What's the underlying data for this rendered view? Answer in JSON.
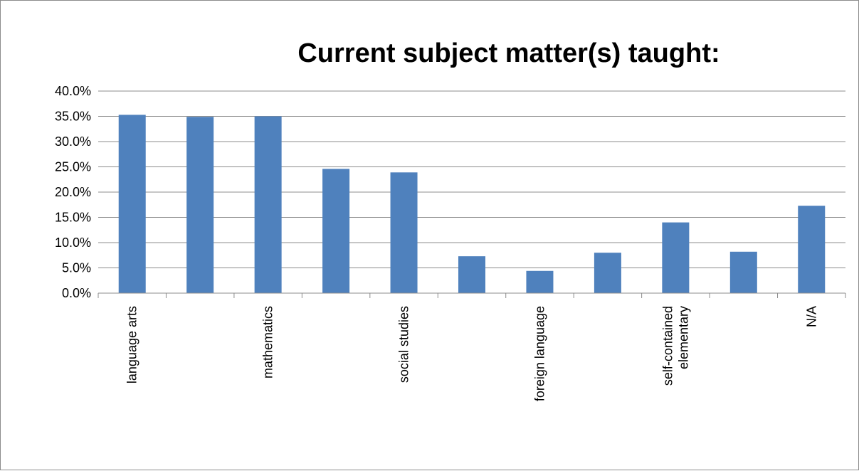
{
  "chart_data": {
    "type": "bar",
    "title": "Current subject matter(s) taught:",
    "xlabel": "",
    "ylabel": "",
    "ylim": [
      0,
      0.4
    ],
    "yticks": [
      "0.0%",
      "5.0%",
      "10.0%",
      "15.0%",
      "20.0%",
      "25.0%",
      "30.0%",
      "35.0%",
      "40.0%"
    ],
    "grid": true,
    "legend": "none",
    "bar_color": "#4f81bd",
    "categories": [
      [
        "language arts"
      ],
      [],
      [
        "mathematics"
      ],
      [],
      [
        "social studies"
      ],
      [],
      [
        "foreign language"
      ],
      [],
      [
        "self-contained",
        "elementary"
      ],
      [],
      [
        "N/A"
      ]
    ],
    "values": [
      0.353,
      0.349,
      0.35,
      0.246,
      0.239,
      0.073,
      0.044,
      0.08,
      0.14,
      0.082,
      0.173
    ]
  }
}
